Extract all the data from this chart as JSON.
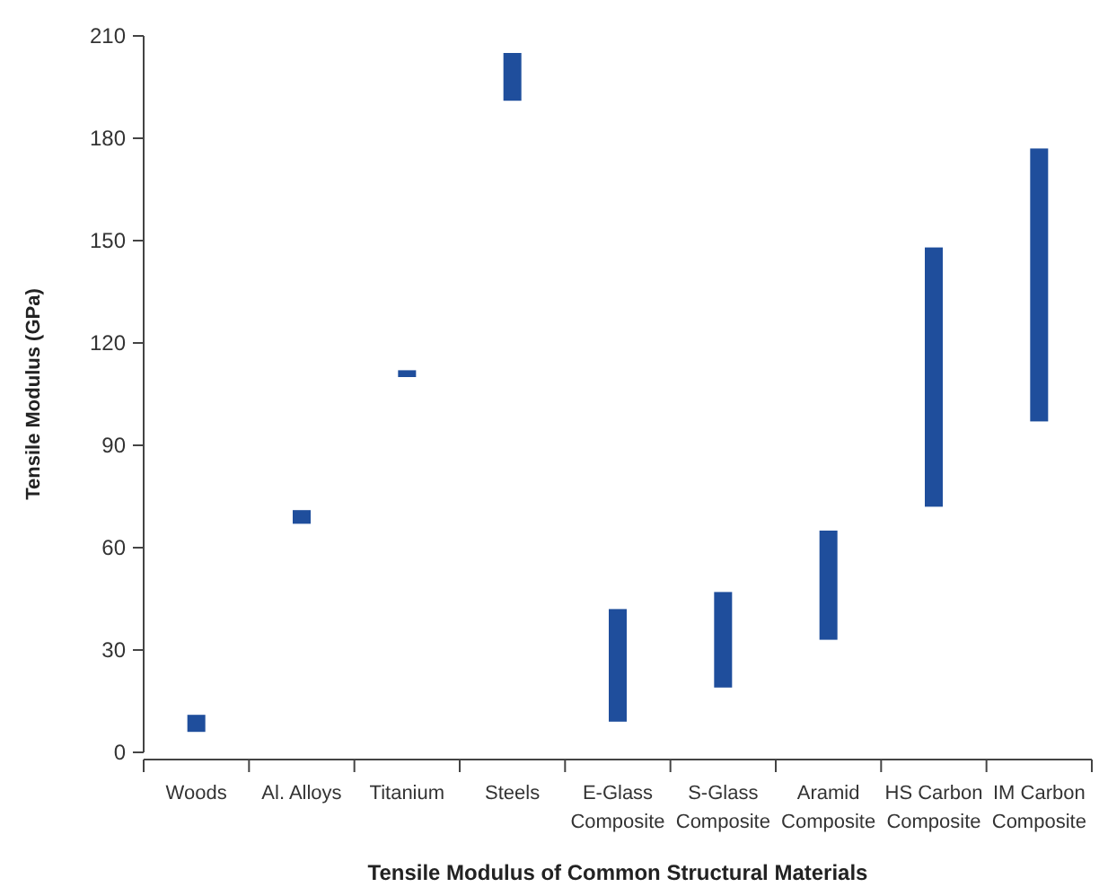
{
  "chart_data": {
    "type": "bar",
    "xlabel": "Tensile Modulus of Common Structural Materials",
    "ylabel": "Tensile Modulus (GPa)",
    "categories": [
      "Woods",
      "Al. Alloys",
      "Titanium",
      "Steels",
      "E-Glass Composite",
      "S-Glass Composite",
      "Aramid Composite",
      "HS Carbon Composite",
      "IM Carbon Composite"
    ],
    "base": [
      6,
      67,
      110,
      191,
      9,
      19,
      33,
      72,
      97
    ],
    "values": [
      5,
      4,
      2,
      14,
      33,
      28,
      32,
      76,
      80
    ],
    "color": "#1f4e9c",
    "ylim": [
      0,
      210
    ],
    "yticks": [
      0,
      30,
      60,
      90,
      120,
      150,
      180,
      210
    ]
  }
}
